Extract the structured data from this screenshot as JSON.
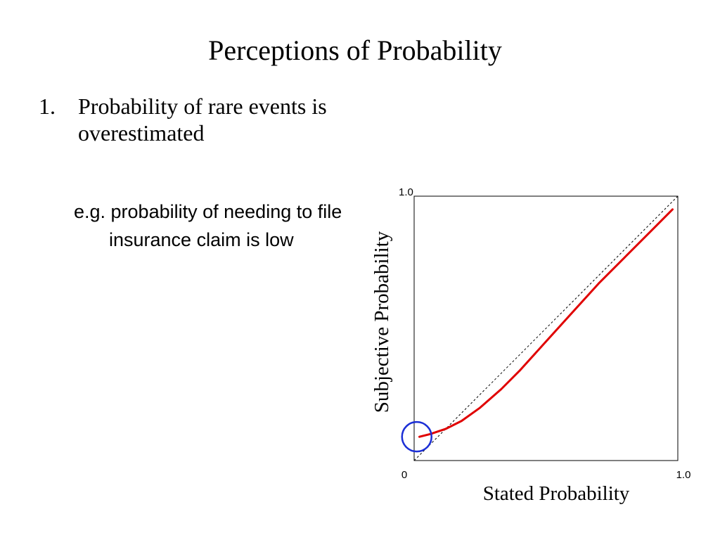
{
  "slide": {
    "title": "Perceptions of Probability",
    "bullet_number": "1.",
    "bullet_text": "Probability of rare events is overestimated",
    "example_text": "e.g. probability of needing to file insurance claim is low"
  },
  "colors": {
    "curve": "#e00000",
    "highlight_circle": "#1c2fd6",
    "reference_line": "#000000"
  },
  "chart_data": {
    "type": "line",
    "xlabel": "Stated Probability",
    "ylabel": "Subjective Probability",
    "xlim": [
      0,
      1
    ],
    "ylim": [
      0,
      1
    ],
    "x_tick_labels": [
      {
        "value": 0,
        "label": "0"
      },
      {
        "value": 1,
        "label": "1.0"
      }
    ],
    "y_tick_labels": [
      {
        "value": 1,
        "label": "1.0"
      }
    ],
    "grid": false,
    "series": [
      {
        "style": "dashed",
        "role": "reference",
        "x": [
          0,
          1
        ],
        "y": [
          0,
          1
        ]
      },
      {
        "style": "solid",
        "role": "curve",
        "x": [
          0.02,
          0.06,
          0.12,
          0.18,
          0.25,
          0.33,
          0.4,
          0.5,
          0.6,
          0.7,
          0.8,
          0.9,
          0.98
        ],
        "y": [
          0.09,
          0.1,
          0.12,
          0.15,
          0.2,
          0.27,
          0.34,
          0.45,
          0.56,
          0.67,
          0.77,
          0.87,
          0.95
        ]
      }
    ],
    "annotations": [
      {
        "type": "circle",
        "x": 0.01,
        "y": 0.09,
        "description": "rare-event region highlighted"
      }
    ]
  }
}
